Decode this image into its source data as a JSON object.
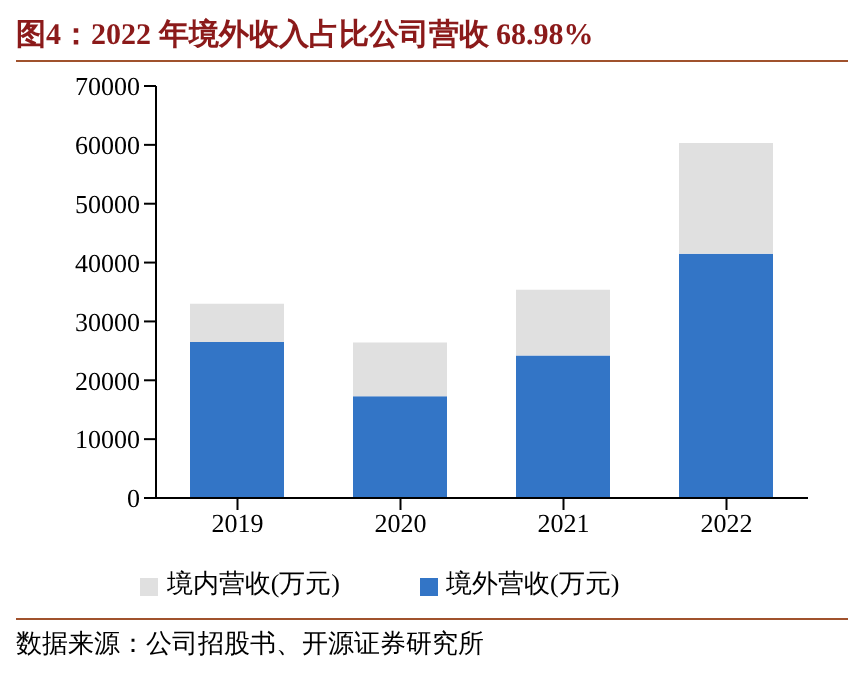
{
  "chart_data": {
    "type": "bar",
    "title": "图4：2022 年境外收入占比公司营收 68.98%",
    "categories": [
      "2019",
      "2020",
      "2021",
      "2022"
    ],
    "stacked": true,
    "series": [
      {
        "name": "境外营收(万元)",
        "color": "#3375c6",
        "values": [
          26500,
          17300,
          24200,
          41500
        ]
      },
      {
        "name": "境内营收(万元)",
        "color": "#e0e0e0",
        "values": [
          6500,
          9100,
          11200,
          18800
        ]
      }
    ],
    "ylim": [
      0,
      70000
    ],
    "yticks": [
      0,
      10000,
      20000,
      30000,
      40000,
      50000,
      60000,
      70000
    ],
    "grid": false,
    "legend": "bottom",
    "annotations": [
      "数据来源：公司招股书、开源证券研究所"
    ]
  }
}
